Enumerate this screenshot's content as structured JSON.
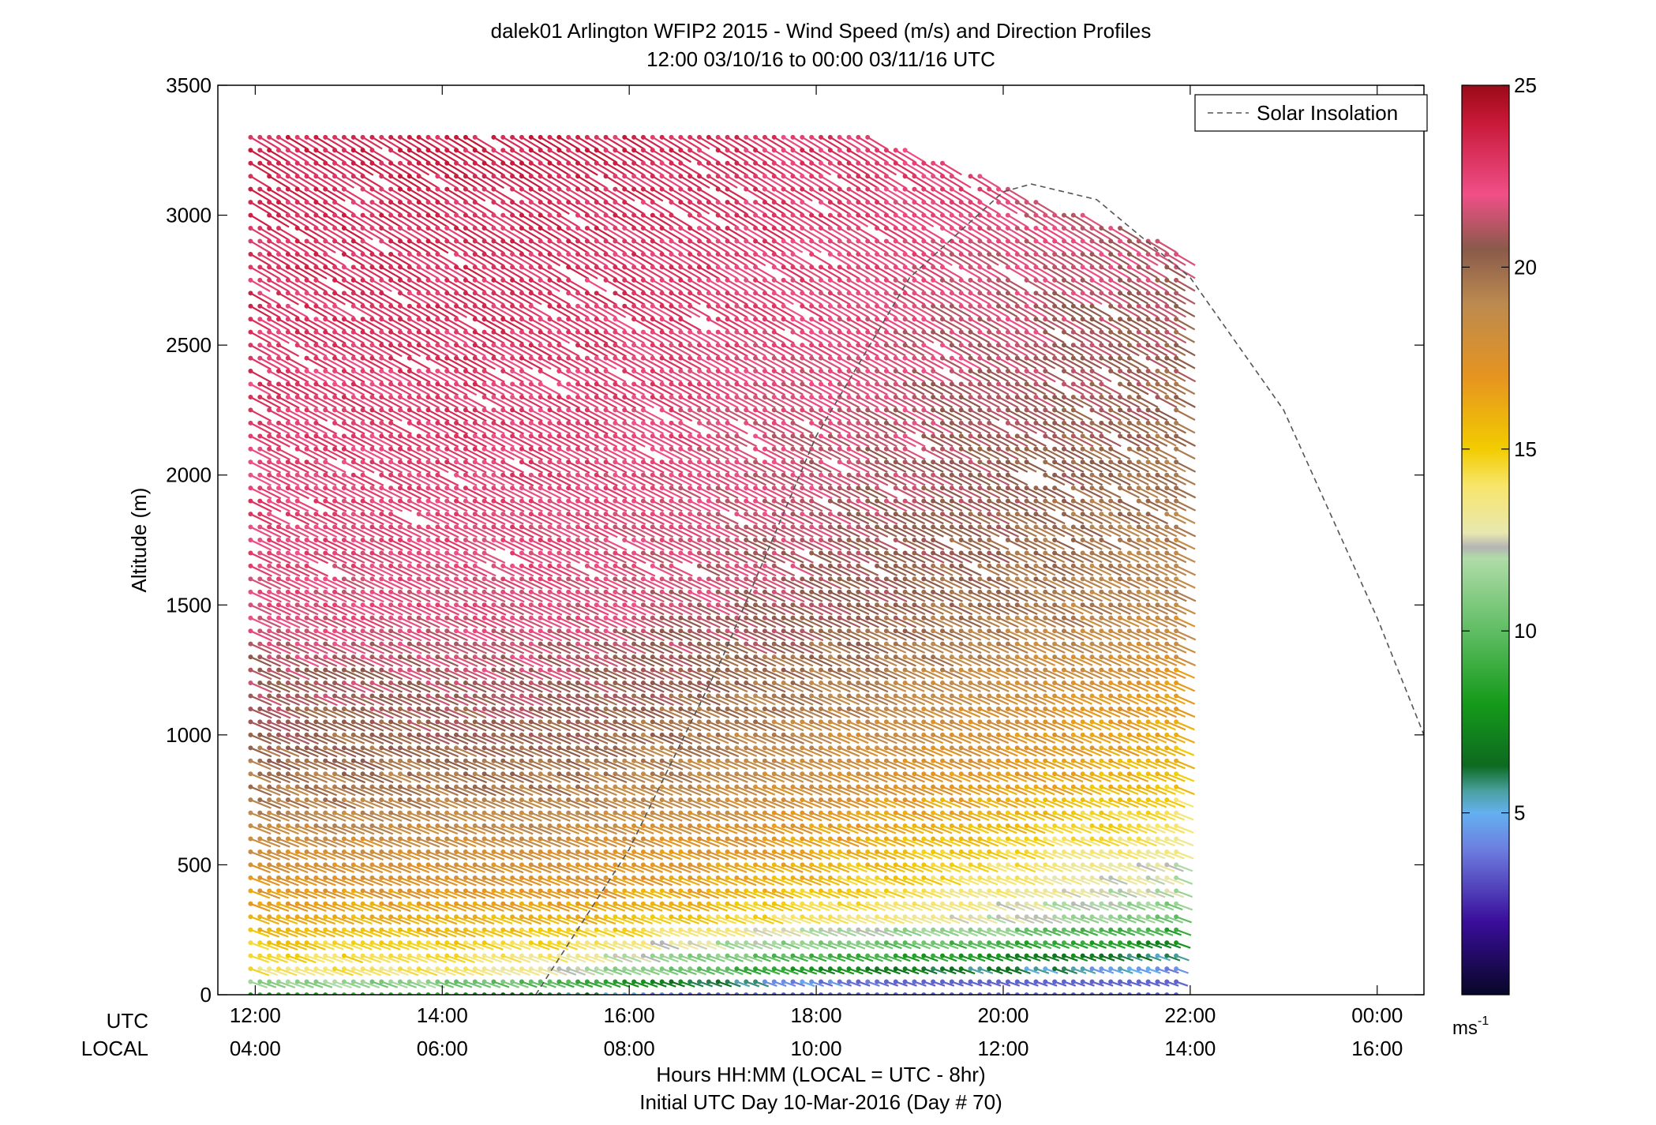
{
  "chart_data": {
    "type": "wind-barb-profile",
    "title_line1": "dalek01 Arlington WFIP2 2015 - Wind Speed (m/s) and Direction Profiles",
    "title_line2": "12:00 03/10/16 to 00:00 03/11/16  UTC",
    "ylabel": "Altitude (m)",
    "xlabel_line1": "Hours HH:MM  (LOCAL = UTC - 8hr)",
    "xlabel_line2": "Initial UTC Day 10-Mar-2016 (Day # 70)",
    "utc_row_label": "UTC",
    "local_row_label": "LOCAL",
    "x_ticks_utc": [
      "12:00",
      "14:00",
      "16:00",
      "18:00",
      "20:00",
      "22:00",
      "00:00"
    ],
    "x_ticks_local": [
      "04:00",
      "06:00",
      "08:00",
      "10:00",
      "12:00",
      "14:00",
      "16:00"
    ],
    "x_tick_hours": [
      12,
      14,
      16,
      18,
      20,
      22,
      24
    ],
    "xlim": [
      11.6,
      24.5
    ],
    "y_ticks": [
      "0",
      "500",
      "1000",
      "1500",
      "2000",
      "2500",
      "3000",
      "3500"
    ],
    "y_tick_values": [
      0,
      500,
      1000,
      1500,
      2000,
      2500,
      3000,
      3500
    ],
    "ylim": [
      0,
      3500
    ],
    "legend": {
      "label": "Solar Insolation",
      "placement": "top-right"
    },
    "solar_insolation": {
      "hours": [
        15.0,
        16.0,
        17.0,
        18.0,
        19.0,
        20.0,
        20.3,
        21.0,
        22.0,
        23.0,
        24.0,
        24.5
      ],
      "altitude_equiv": [
        0,
        560,
        1300,
        2150,
        2760,
        3090,
        3120,
        3060,
        2760,
        2250,
        1450,
        1000
      ]
    },
    "colorbar": {
      "range": [
        0,
        25
      ],
      "ticks": [
        "5",
        "10",
        "15",
        "20",
        "25"
      ],
      "tick_values": [
        5,
        10,
        15,
        20,
        25
      ],
      "unit_label": "ms",
      "unit_exponent": "-1",
      "stops": [
        {
          "v": 0,
          "c": "#070727"
        },
        {
          "v": 2,
          "c": "#3a0d9a"
        },
        {
          "v": 4,
          "c": "#6d7ee0"
        },
        {
          "v": 5,
          "c": "#64b0f0"
        },
        {
          "v": 5.6,
          "c": "#4aa0a0"
        },
        {
          "v": 6.3,
          "c": "#0d6a20"
        },
        {
          "v": 8,
          "c": "#159a1a"
        },
        {
          "v": 10,
          "c": "#5fbd63"
        },
        {
          "v": 12,
          "c": "#b0dca8"
        },
        {
          "v": 12.3,
          "c": "#b4b4b4"
        },
        {
          "v": 12.7,
          "c": "#e8e8b0"
        },
        {
          "v": 14,
          "c": "#f8e56a"
        },
        {
          "v": 15,
          "c": "#f2cc00"
        },
        {
          "v": 17,
          "c": "#e69420"
        },
        {
          "v": 19,
          "c": "#bc8a50"
        },
        {
          "v": 20.5,
          "c": "#8a5a4a"
        },
        {
          "v": 22,
          "c": "#f04f88"
        },
        {
          "v": 24,
          "c": "#c81838"
        },
        {
          "v": 25,
          "c": "#9a0a18"
        }
      ]
    },
    "profiles": {
      "start_hour": 11.95,
      "step_hours": 0.1,
      "count": 100,
      "altitude_step_m": 50,
      "max_altitude_m": 3500,
      "speed_bands": [
        {
          "alt_m": 0,
          "speed_ms": 8.5
        },
        {
          "alt_m": 100,
          "speed_ms": 14.0
        },
        {
          "alt_m": 400,
          "speed_ms": 17.0
        },
        {
          "alt_m": 800,
          "speed_ms": 19.5
        },
        {
          "alt_m": 1500,
          "speed_ms": 22.0
        },
        {
          "alt_m": 3400,
          "speed_ms": 23.5
        }
      ],
      "low_level_jet_floor_ms": 3.5,
      "direction_deg_low": 240,
      "direction_deg_high": 225
    }
  }
}
